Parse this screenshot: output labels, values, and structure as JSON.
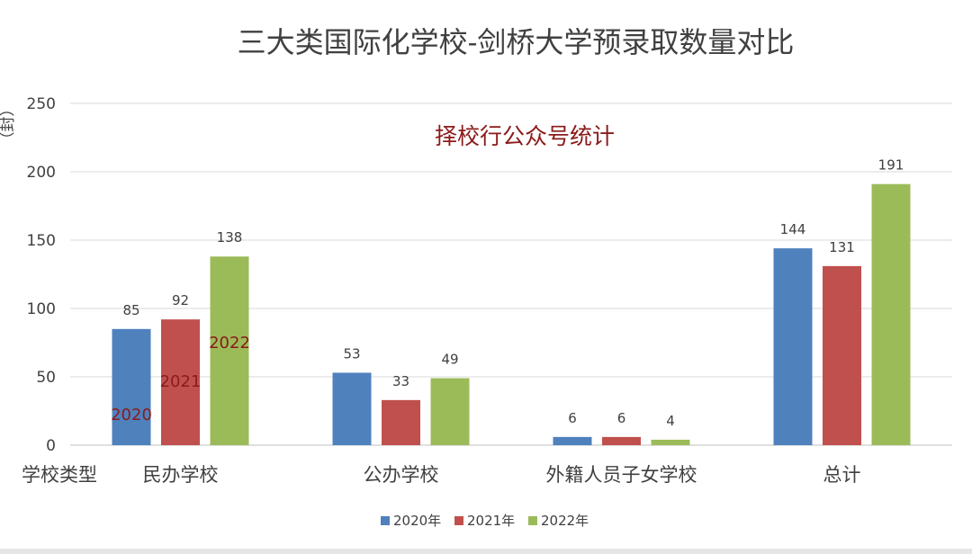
{
  "chart_data": {
    "type": "bar",
    "title": "三大类国际化学校-剑桥大学预录取数量对比",
    "subtitle": "择校行公众号统计",
    "ylabel": "（封）",
    "xlabel": "学校类型",
    "ylim": [
      0,
      250
    ],
    "yticks": [
      0,
      50,
      100,
      150,
      200,
      250
    ],
    "grid": true,
    "legend_position": "bottom",
    "categories": [
      "民办学校",
      "公办学校",
      "外籍人员子女学校",
      "总计"
    ],
    "series": [
      {
        "name": "2020年",
        "inbar_label": "2020",
        "color": "#4f81bd",
        "values": [
          85,
          53,
          6,
          144
        ]
      },
      {
        "name": "2021年",
        "inbar_label": "2021",
        "color": "#c0504d",
        "values": [
          92,
          33,
          6,
          131
        ]
      },
      {
        "name": "2022年",
        "inbar_label": "2022",
        "color": "#9bbb59",
        "values": [
          138,
          49,
          4,
          191
        ]
      }
    ]
  }
}
